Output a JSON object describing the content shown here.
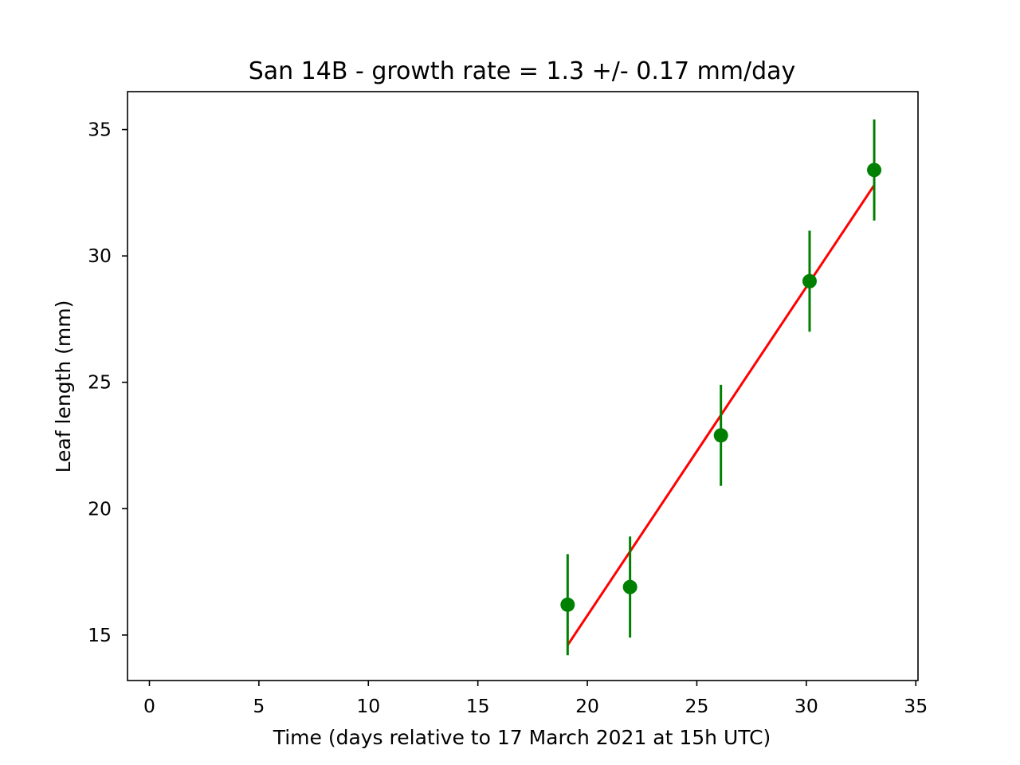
{
  "chart_data": {
    "type": "scatter",
    "title": "San 14B  -  growth rate =  1.3 +/- 0.17 mm/day",
    "xlabel": "Time (days relative to 17 March 2021 at 15h UTC)",
    "ylabel": "Leaf length (mm)",
    "xlim": [
      -1,
      35.1
    ],
    "ylim": [
      13.2,
      36.5
    ],
    "xticks": [
      0,
      5,
      10,
      15,
      20,
      25,
      30,
      35
    ],
    "yticks": [
      15,
      20,
      25,
      30,
      35
    ],
    "xtick_labels": [
      "0",
      "5",
      "10",
      "15",
      "20",
      "25",
      "30",
      "35"
    ],
    "ytick_labels": [
      "15",
      "20",
      "25",
      "30",
      "35"
    ],
    "grid": false,
    "series": [
      {
        "kind": "errorbar",
        "color": "#008000",
        "x": [
          19.1,
          21.95,
          26.1,
          30.15,
          33.1
        ],
        "y": [
          16.2,
          16.9,
          22.9,
          29.0,
          33.4
        ],
        "yerr": [
          2.0,
          2.0,
          2.0,
          2.0,
          2.0
        ]
      },
      {
        "kind": "fit-line",
        "color": "#ff0000",
        "x": [
          19.1,
          33.1
        ],
        "y": [
          14.6,
          32.8
        ]
      }
    ]
  }
}
